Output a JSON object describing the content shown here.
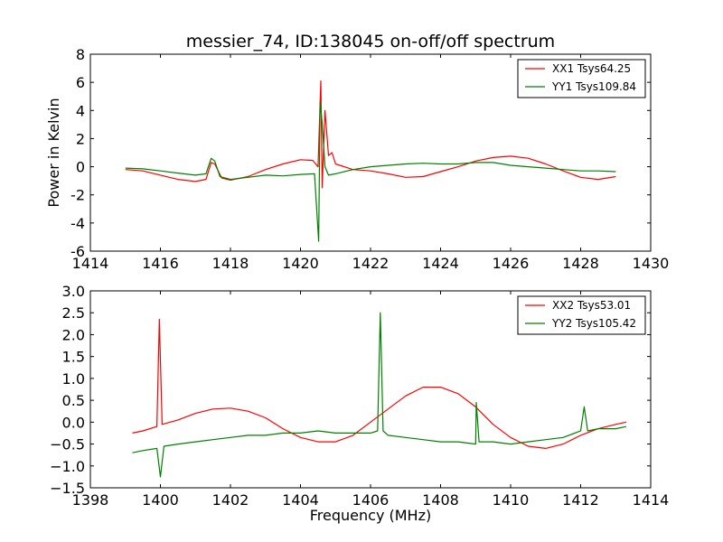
{
  "colors": {
    "xx": "#ff0000",
    "yy": "#008000"
  },
  "chart_data": [
    {
      "type": "line",
      "title": "messier_74, ID:138045 on-off/off spectrum",
      "xlabel": "",
      "ylabel": "Power in Kelvin",
      "xlim": [
        1414,
        1430
      ],
      "ylim": [
        -6,
        8
      ],
      "xticks": [
        "1414",
        "1416",
        "1418",
        "1420",
        "1422",
        "1424",
        "1426",
        "1428",
        "1430"
      ],
      "yticks": [
        "-6",
        "-4",
        "-2",
        "0",
        "2",
        "4",
        "6",
        "8"
      ],
      "legend_position": "top-right",
      "series": [
        {
          "name": "XX1 Tsys64.25",
          "color": "#ff0000",
          "points": [
            [
              1415.0,
              -0.2
            ],
            [
              1415.5,
              -0.3
            ],
            [
              1416.0,
              -0.6
            ],
            [
              1416.5,
              -0.9
            ],
            [
              1417.0,
              -1.05
            ],
            [
              1417.3,
              -0.9
            ],
            [
              1417.45,
              0.3
            ],
            [
              1417.55,
              0.2
            ],
            [
              1417.75,
              -0.8
            ],
            [
              1418.0,
              -0.95
            ],
            [
              1418.5,
              -0.7
            ],
            [
              1419.0,
              -0.2
            ],
            [
              1419.5,
              0.2
            ],
            [
              1420.0,
              0.5
            ],
            [
              1420.35,
              0.45
            ],
            [
              1420.5,
              0.0
            ],
            [
              1420.58,
              6.1
            ],
            [
              1420.62,
              -1.5
            ],
            [
              1420.7,
              4.0
            ],
            [
              1420.8,
              0.8
            ],
            [
              1420.9,
              1.0
            ],
            [
              1421.0,
              0.2
            ],
            [
              1421.5,
              -0.2
            ],
            [
              1422.0,
              -0.3
            ],
            [
              1422.5,
              -0.5
            ],
            [
              1423.0,
              -0.75
            ],
            [
              1423.5,
              -0.7
            ],
            [
              1424.0,
              -0.35
            ],
            [
              1424.5,
              0.0
            ],
            [
              1425.0,
              0.4
            ],
            [
              1425.5,
              0.65
            ],
            [
              1426.0,
              0.75
            ],
            [
              1426.5,
              0.6
            ],
            [
              1427.0,
              0.2
            ],
            [
              1427.5,
              -0.3
            ],
            [
              1428.0,
              -0.75
            ],
            [
              1428.5,
              -0.9
            ],
            [
              1429.0,
              -0.7
            ]
          ]
        },
        {
          "name": "YY1 Tsys109.84",
          "color": "#008000",
          "points": [
            [
              1415.0,
              -0.1
            ],
            [
              1415.5,
              -0.15
            ],
            [
              1416.0,
              -0.3
            ],
            [
              1416.5,
              -0.45
            ],
            [
              1417.0,
              -0.6
            ],
            [
              1417.3,
              -0.5
            ],
            [
              1417.45,
              0.6
            ],
            [
              1417.55,
              0.4
            ],
            [
              1417.7,
              -0.7
            ],
            [
              1418.0,
              -0.9
            ],
            [
              1418.5,
              -0.75
            ],
            [
              1419.0,
              -0.6
            ],
            [
              1419.5,
              -0.65
            ],
            [
              1420.0,
              -0.55
            ],
            [
              1420.4,
              -0.5
            ],
            [
              1420.52,
              -5.3
            ],
            [
              1420.56,
              4.6
            ],
            [
              1420.62,
              3.1
            ],
            [
              1420.7,
              0.0
            ],
            [
              1420.8,
              -0.6
            ],
            [
              1421.0,
              -0.5
            ],
            [
              1421.5,
              -0.2
            ],
            [
              1422.0,
              0.0
            ],
            [
              1422.5,
              0.1
            ],
            [
              1423.0,
              0.2
            ],
            [
              1423.5,
              0.25
            ],
            [
              1424.0,
              0.2
            ],
            [
              1424.5,
              0.2
            ],
            [
              1425.0,
              0.3
            ],
            [
              1425.5,
              0.3
            ],
            [
              1426.0,
              0.1
            ],
            [
              1426.5,
              0.0
            ],
            [
              1427.0,
              -0.1
            ],
            [
              1427.5,
              -0.2
            ],
            [
              1428.0,
              -0.3
            ],
            [
              1428.5,
              -0.3
            ],
            [
              1429.0,
              -0.35
            ]
          ]
        }
      ]
    },
    {
      "type": "line",
      "title": "",
      "xlabel": "Frequency (MHz)",
      "ylabel": "",
      "xlim": [
        1398,
        1414
      ],
      "ylim": [
        -1.5,
        3.0
      ],
      "xticks": [
        "1398",
        "1400",
        "1402",
        "1404",
        "1406",
        "1408",
        "1410",
        "1412",
        "1414"
      ],
      "yticks": [
        "−1.5",
        "−1.0",
        "−0.5",
        "0.0",
        "0.5",
        "1.0",
        "1.5",
        "2.0",
        "2.5",
        "3.0"
      ],
      "legend_position": "top-right",
      "series": [
        {
          "name": "XX2 Tsys53.01",
          "color": "#ff0000",
          "points": [
            [
              1399.2,
              -0.25
            ],
            [
              1399.5,
              -0.2
            ],
            [
              1399.9,
              -0.1
            ],
            [
              1399.97,
              2.35
            ],
            [
              1400.05,
              -0.05
            ],
            [
              1400.5,
              0.05
            ],
            [
              1401.0,
              0.2
            ],
            [
              1401.5,
              0.3
            ],
            [
              1402.0,
              0.32
            ],
            [
              1402.5,
              0.25
            ],
            [
              1403.0,
              0.1
            ],
            [
              1403.5,
              -0.15
            ],
            [
              1404.0,
              -0.35
            ],
            [
              1404.5,
              -0.45
            ],
            [
              1405.0,
              -0.45
            ],
            [
              1405.5,
              -0.3
            ],
            [
              1406.0,
              0.0
            ],
            [
              1406.5,
              0.3
            ],
            [
              1407.0,
              0.6
            ],
            [
              1407.5,
              0.8
            ],
            [
              1408.0,
              0.8
            ],
            [
              1408.5,
              0.65
            ],
            [
              1409.0,
              0.35
            ],
            [
              1409.5,
              -0.05
            ],
            [
              1410.0,
              -0.35
            ],
            [
              1410.5,
              -0.55
            ],
            [
              1411.0,
              -0.6
            ],
            [
              1411.5,
              -0.5
            ],
            [
              1412.0,
              -0.3
            ],
            [
              1412.5,
              -0.15
            ],
            [
              1413.0,
              -0.05
            ],
            [
              1413.3,
              0.0
            ]
          ]
        },
        {
          "name": "YY2 Tsys105.42",
          "color": "#008000",
          "points": [
            [
              1399.2,
              -0.7
            ],
            [
              1399.5,
              -0.65
            ],
            [
              1399.9,
              -0.6
            ],
            [
              1400.0,
              -1.25
            ],
            [
              1400.1,
              -0.55
            ],
            [
              1400.5,
              -0.5
            ],
            [
              1401.0,
              -0.45
            ],
            [
              1401.5,
              -0.4
            ],
            [
              1402.0,
              -0.35
            ],
            [
              1402.5,
              -0.3
            ],
            [
              1403.0,
              -0.3
            ],
            [
              1403.5,
              -0.25
            ],
            [
              1404.0,
              -0.25
            ],
            [
              1404.5,
              -0.2
            ],
            [
              1405.0,
              -0.25
            ],
            [
              1405.5,
              -0.25
            ],
            [
              1406.0,
              -0.25
            ],
            [
              1406.2,
              -0.2
            ],
            [
              1406.28,
              2.5
            ],
            [
              1406.36,
              -0.2
            ],
            [
              1406.5,
              -0.3
            ],
            [
              1407.0,
              -0.35
            ],
            [
              1407.5,
              -0.4
            ],
            [
              1408.0,
              -0.45
            ],
            [
              1408.5,
              -0.45
            ],
            [
              1409.0,
              -0.5
            ],
            [
              1409.02,
              0.45
            ],
            [
              1409.1,
              -0.45
            ],
            [
              1409.5,
              -0.45
            ],
            [
              1410.0,
              -0.5
            ],
            [
              1410.5,
              -0.45
            ],
            [
              1411.0,
              -0.4
            ],
            [
              1411.5,
              -0.35
            ],
            [
              1412.0,
              -0.2
            ],
            [
              1412.1,
              0.35
            ],
            [
              1412.2,
              -0.2
            ],
            [
              1412.5,
              -0.15
            ],
            [
              1413.0,
              -0.15
            ],
            [
              1413.3,
              -0.1
            ]
          ]
        }
      ]
    }
  ]
}
